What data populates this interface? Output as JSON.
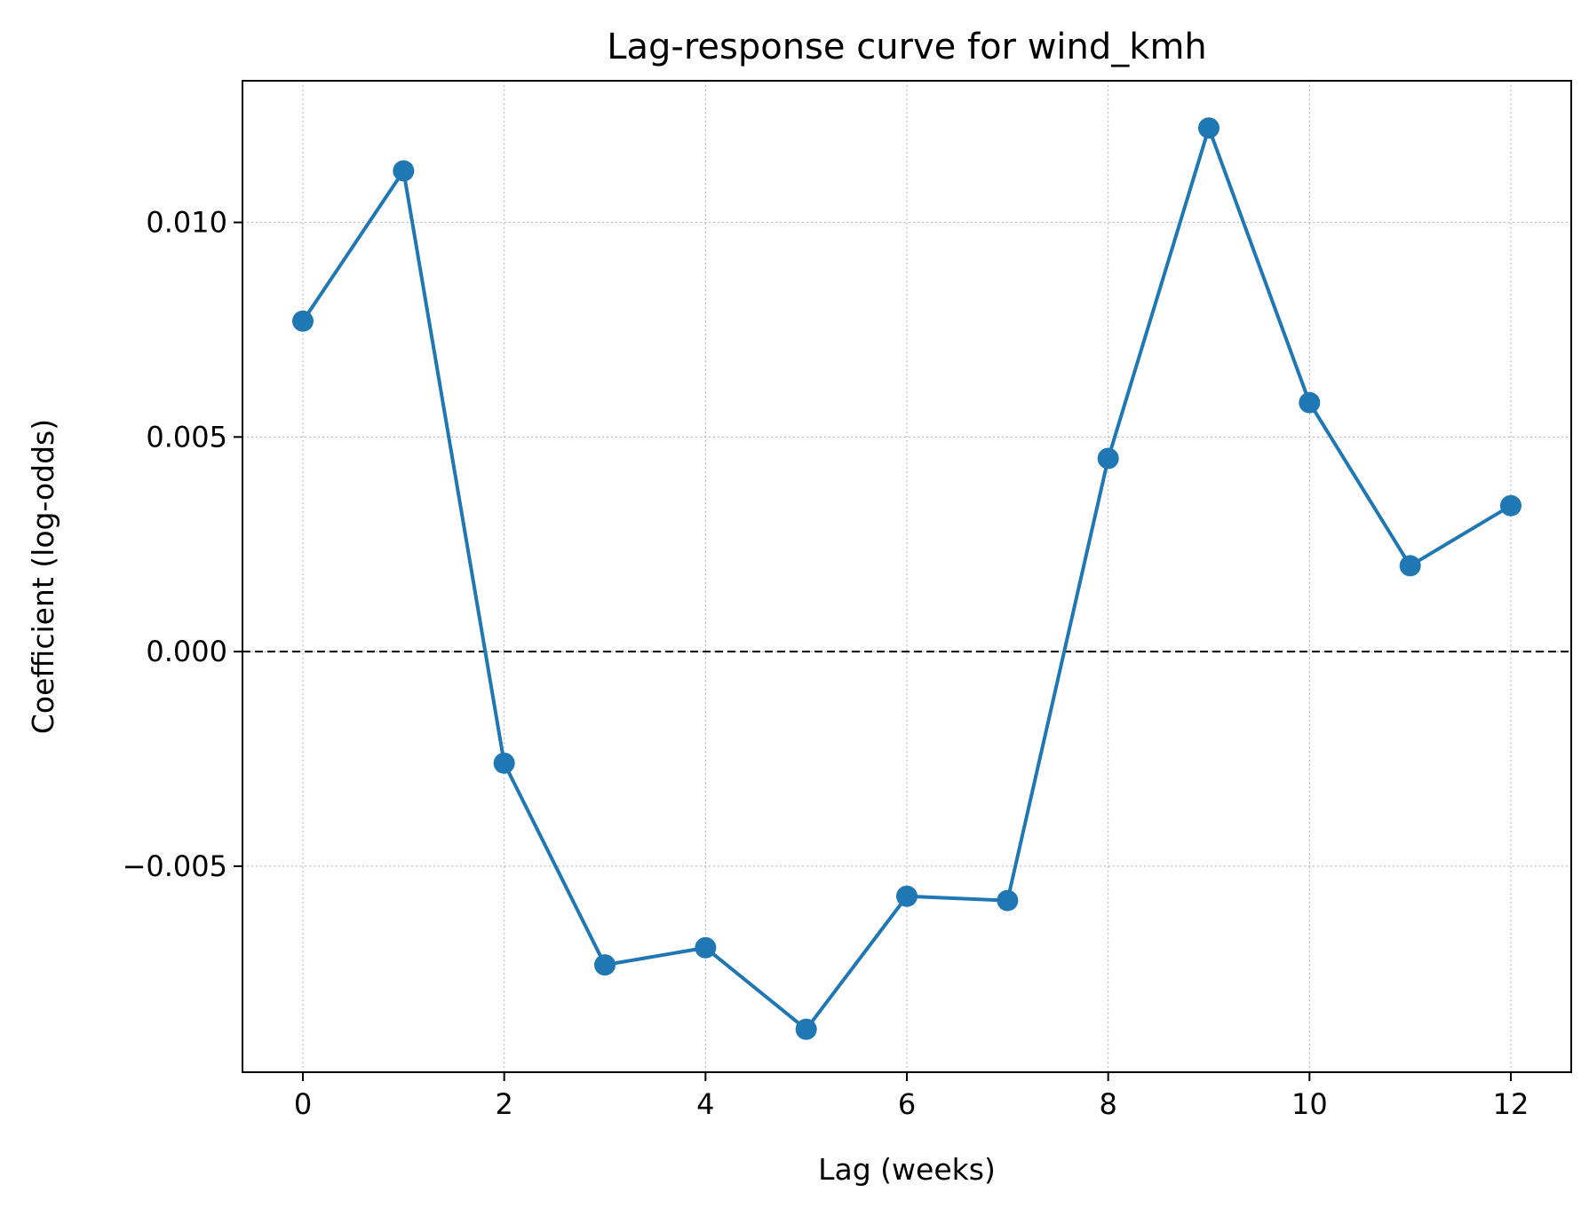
{
  "chart_data": {
    "type": "line",
    "title": "Lag-response curve for wind_kmh",
    "xlabel": "Lag (weeks)",
    "ylabel": "Coefficient (log-odds)",
    "xlim": [
      -0.6,
      12.6
    ],
    "ylim": [
      -0.0098,
      0.0133
    ],
    "xticks": [
      0,
      2,
      4,
      6,
      8,
      10,
      12
    ],
    "xtick_labels": [
      "0",
      "2",
      "4",
      "6",
      "8",
      "10",
      "12"
    ],
    "yticks": [
      -0.005,
      0.0,
      0.005,
      0.01
    ],
    "ytick_labels": [
      "−0.005",
      "0.000",
      "0.005",
      "0.010"
    ],
    "grid": true,
    "reference_line": {
      "y": 0.0,
      "style": "dashed",
      "color": "#000000"
    },
    "series": [
      {
        "color": "#1f77b4",
        "marker": "circle",
        "x": [
          0,
          1,
          2,
          3,
          4,
          5,
          6,
          7,
          8,
          9,
          10,
          11,
          12
        ],
        "y": [
          0.0077,
          0.0112,
          -0.0026,
          -0.0073,
          -0.0069,
          -0.0088,
          -0.0057,
          -0.0058,
          0.0045,
          0.0122,
          0.0058,
          0.002,
          0.0034
        ]
      }
    ]
  }
}
